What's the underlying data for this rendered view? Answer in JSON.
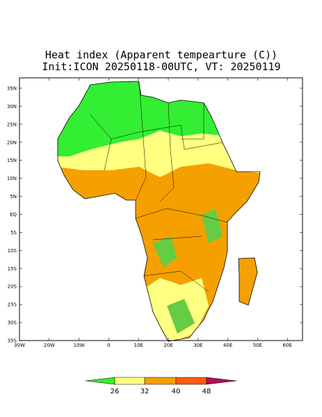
{
  "header": {
    "title": "Heat index (Apparent tempearture (C))",
    "subtitle": "Init:ICON 20250118-00UTC, VT: 20250119"
  },
  "axes": {
    "lat_labels": [
      "35N",
      "30N",
      "25N",
      "20N",
      "15N",
      "10N",
      "5N",
      "EQ",
      "5S",
      "10S",
      "15S",
      "20S",
      "25S",
      "30S",
      "35S"
    ],
    "lon_labels": [
      "30W",
      "20W",
      "10W",
      "0",
      "10E",
      "20E",
      "30E",
      "40E",
      "50E",
      "60E"
    ]
  },
  "colorbar": {
    "labels": [
      "26",
      "32",
      "40",
      "48"
    ]
  }
}
